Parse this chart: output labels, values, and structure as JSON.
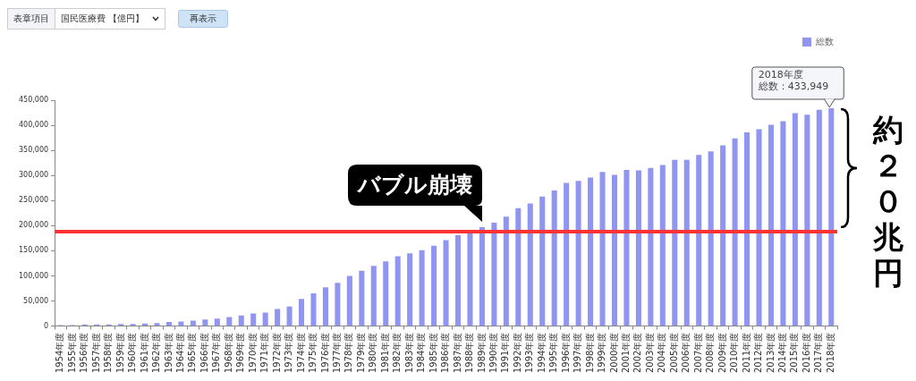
{
  "chart_data": {
    "type": "bar",
    "categories": [
      "1954年度",
      "1955年度",
      "1956年度",
      "1957年度",
      "1958年度",
      "1959年度",
      "1960年度",
      "1961年度",
      "1962年度",
      "1963年度",
      "1964年度",
      "1965年度",
      "1966年度",
      "1967年度",
      "1968年度",
      "1969年度",
      "1970年度",
      "1971年度",
      "1972年度",
      "1973年度",
      "1974年度",
      "1975年度",
      "1976年度",
      "1977年度",
      "1978年度",
      "1979年度",
      "1980年度",
      "1981年度",
      "1982年度",
      "1983年度",
      "1984年度",
      "1985年度",
      "1986年度",
      "1987年度",
      "1988年度",
      "1989年度",
      "1990年度",
      "1991年度",
      "1992年度",
      "1993年度",
      "1994年度",
      "1995年度",
      "1996年度",
      "1997年度",
      "1998年度",
      "1999年度",
      "2000年度",
      "2001年度",
      "2002年度",
      "2003年度",
      "2004年度",
      "2005年度",
      "2006年度",
      "2007年度",
      "2008年度",
      "2009年度",
      "2010年度",
      "2011年度",
      "2012年度",
      "2013年度",
      "2014年度",
      "2015年度",
      "2016年度",
      "2017年度",
      "2018年度"
    ],
    "series": [
      {
        "name": "総数",
        "color": "#9095f2",
        "values": [
          2000,
          2000,
          3000,
          3000,
          3000,
          4000,
          4000,
          5000,
          6000,
          8000,
          9000,
          11000,
          13000,
          15000,
          18000,
          21000,
          25000,
          27000,
          34000,
          39000,
          54000,
          65000,
          77000,
          86000,
          100000,
          110000,
          120000,
          129000,
          139000,
          145000,
          151000,
          160000,
          171000,
          181000,
          188000,
          197000,
          206000,
          218000,
          235000,
          244000,
          258000,
          270000,
          285000,
          289000,
          296000,
          307000,
          301000,
          311000,
          310000,
          315000,
          321000,
          331000,
          331000,
          341000,
          348000,
          360000,
          374000,
          386000,
          392000,
          401000,
          408000,
          424000,
          421000,
          431000,
          433949
        ]
      }
    ],
    "ylim": [
      0,
      450000
    ],
    "yticks": [
      {
        "value": 0,
        "label": "0"
      },
      {
        "value": 50000,
        "label": "50,000"
      },
      {
        "value": 100000,
        "label": "100,000"
      },
      {
        "value": 150000,
        "label": "150,000"
      },
      {
        "value": 200000,
        "label": "200,000"
      },
      {
        "value": 250000,
        "label": "250,000"
      },
      {
        "value": 300000,
        "label": "300,000"
      },
      {
        "value": 350000,
        "label": "350,000"
      },
      {
        "value": 400000,
        "label": "400,000"
      },
      {
        "value": 450000,
        "label": "450,000"
      }
    ],
    "grid": false,
    "legend": "top right",
    "ref_lines": [
      {
        "axis": "y",
        "value": 188000,
        "color": "#ff3333"
      }
    ],
    "annotations": [
      "表章項目",
      "国民医療費 【億円】",
      "再表示",
      {
        "text": "バブル崩壊",
        "x": "1989年度",
        "y": 197000
      },
      {
        "text": "総数：433,949",
        "x": "2018年度",
        "y": 433949
      },
      "約２０兆円"
    ]
  }
}
